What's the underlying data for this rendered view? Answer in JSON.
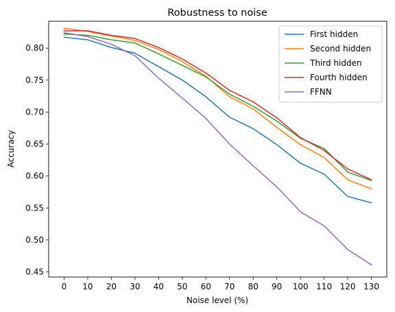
{
  "chart_data": {
    "type": "line",
    "title": "Robustness to noise",
    "xlabel": "Noise level (%)",
    "ylabel": "Accuracy",
    "x": [
      0,
      10,
      20,
      30,
      40,
      50,
      60,
      70,
      80,
      90,
      100,
      110,
      120,
      130
    ],
    "xticks": [
      "0",
      "10",
      "20",
      "30",
      "40",
      "50",
      "60",
      "70",
      "80",
      "90",
      "100",
      "110",
      "120",
      "130"
    ],
    "yticks": [
      "0.45",
      "0.50",
      "0.55",
      "0.60",
      "0.65",
      "0.70",
      "0.75",
      "0.80"
    ],
    "ylim": [
      0.442,
      0.842
    ],
    "xlim": [
      -6.5,
      136.5
    ],
    "grid": false,
    "legend_position": "top-right",
    "series": [
      {
        "name": "First hidden",
        "color": "#1f77b4",
        "values": [
          0.817,
          0.813,
          0.801,
          0.792,
          0.771,
          0.75,
          0.724,
          0.692,
          0.674,
          0.649,
          0.62,
          0.603,
          0.568,
          0.558
        ]
      },
      {
        "name": "Second hidden",
        "color": "#ff7f0e",
        "values": [
          0.831,
          0.826,
          0.819,
          0.812,
          0.798,
          0.779,
          0.756,
          0.724,
          0.705,
          0.676,
          0.649,
          0.629,
          0.594,
          0.58
        ]
      },
      {
        "name": "Third hidden",
        "color": "#2ca02c",
        "values": [
          0.822,
          0.82,
          0.813,
          0.808,
          0.791,
          0.773,
          0.755,
          0.728,
          0.709,
          0.686,
          0.659,
          0.643,
          0.606,
          0.593
        ]
      },
      {
        "name": "Fourth hidden",
        "color": "#d62728",
        "values": [
          0.827,
          0.827,
          0.82,
          0.815,
          0.801,
          0.783,
          0.761,
          0.734,
          0.716,
          0.691,
          0.66,
          0.64,
          0.611,
          0.594
        ]
      },
      {
        "name": "FFNN",
        "color": "#9467bd",
        "values": [
          0.824,
          0.818,
          0.806,
          0.788,
          0.753,
          0.722,
          0.69,
          0.65,
          0.616,
          0.583,
          0.544,
          0.522,
          0.485,
          0.461
        ]
      }
    ]
  }
}
